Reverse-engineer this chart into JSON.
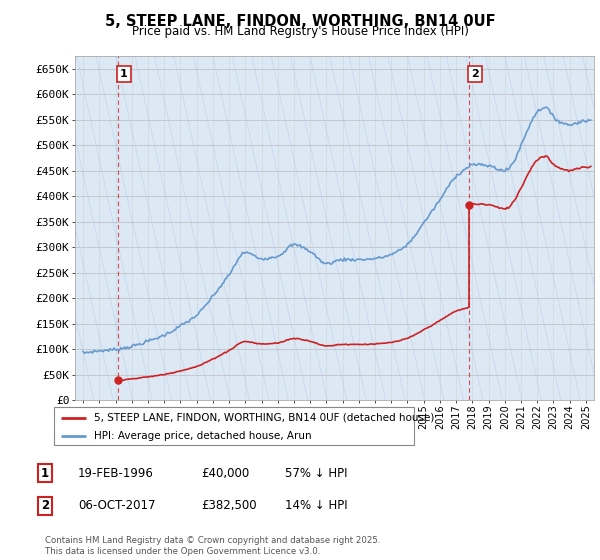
{
  "title": "5, STEEP LANE, FINDON, WORTHING, BN14 0UF",
  "subtitle": "Price paid vs. HM Land Registry's House Price Index (HPI)",
  "ylabel_ticks": [
    "£0",
    "£50K",
    "£100K",
    "£150K",
    "£200K",
    "£250K",
    "£300K",
    "£350K",
    "£400K",
    "£450K",
    "£500K",
    "£550K",
    "£600K",
    "£650K"
  ],
  "ytick_values": [
    0,
    50000,
    100000,
    150000,
    200000,
    250000,
    300000,
    350000,
    400000,
    450000,
    500000,
    550000,
    600000,
    650000
  ],
  "xlim_years": [
    1993.5,
    2025.5
  ],
  "ylim": [
    0,
    675000
  ],
  "purchase1_year": 1996.13,
  "purchase1_price": 40000,
  "purchase2_year": 2017.77,
  "purchase2_price": 382500,
  "legend_entries": [
    "5, STEEP LANE, FINDON, WORTHING, BN14 0UF (detached house)",
    "HPI: Average price, detached house, Arun"
  ],
  "table_rows": [
    [
      "1",
      "19-FEB-1996",
      "£40,000",
      "57% ↓ HPI"
    ],
    [
      "2",
      "06-OCT-2017",
      "£382,500",
      "14% ↓ HPI"
    ]
  ],
  "footer_text": "Contains HM Land Registry data © Crown copyright and database right 2025.\nThis data is licensed under the Open Government Licence v3.0.",
  "hpi_color": "#6699cc",
  "sale_color": "#cc2222",
  "background_color": "#ffffff",
  "grid_color": "#cccccc",
  "hatch_bg_color": "#dde8f5"
}
